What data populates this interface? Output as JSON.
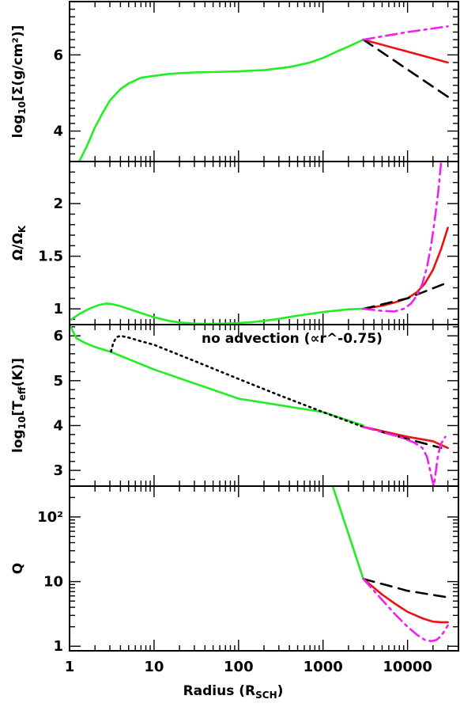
{
  "chart_data": {
    "type": "line",
    "x_scale": "log",
    "xlim": [
      1,
      40000
    ],
    "xticks": [
      1,
      10,
      100,
      1000,
      10000
    ],
    "xtick_labels": [
      "1",
      "10",
      "100",
      "1000",
      "10000"
    ],
    "xlabel": "Radius (R",
    "xlabel_sub": "SCH",
    "xlabel_close": ")",
    "colors": {
      "green": "#22ee22",
      "red": "#ee1111",
      "black": "#000000",
      "magenta": "#ee22ee"
    },
    "panels": [
      {
        "id": "sigma",
        "ylabel_main": "log",
        "ylabel_sub": "10",
        "ylabel_rest": "[Σ(g/cm²)]",
        "ylim": [
          3.2,
          7.4
        ],
        "yscale": "linear",
        "yticks": [
          4,
          6
        ],
        "ytick_labels": [
          "4",
          "6"
        ],
        "yminor": 0.2,
        "series": [
          {
            "style": "solid",
            "color": "green",
            "x": [
              1.3,
              1.6,
              2,
              2.5,
              3,
              4,
              5,
              7,
              10,
              15,
              20,
              30,
              50,
              100,
              200,
              400,
              700,
              1000,
              1500,
              2000,
              3000
            ],
            "y": [
              3.2,
              3.6,
              4.1,
              4.5,
              4.8,
              5.1,
              5.25,
              5.4,
              5.45,
              5.5,
              5.52,
              5.54,
              5.55,
              5.57,
              5.6,
              5.68,
              5.8,
              5.92,
              6.1,
              6.22,
              6.4
            ]
          },
          {
            "style": "solid",
            "color": "red",
            "x": [
              3000,
              30000
            ],
            "y": [
              6.4,
              5.8
            ]
          },
          {
            "style": "dashed",
            "color": "black",
            "x": [
              3000,
              30000
            ],
            "y": [
              6.4,
              4.9
            ]
          },
          {
            "style": "dashdot",
            "color": "magenta",
            "x": [
              3000,
              10000,
              30000
            ],
            "y": [
              6.4,
              6.6,
              6.75
            ]
          }
        ]
      },
      {
        "id": "omega",
        "ylabel_main": "Ω/Ω",
        "ylabel_sub": "K",
        "ylabel_rest": "",
        "ylim": [
          0.85,
          2.4
        ],
        "yscale": "linear",
        "yticks": [
          1,
          1.5,
          2
        ],
        "ytick_labels": [
          "1",
          "1.5",
          "2"
        ],
        "yminor": 0.1,
        "series": [
          {
            "style": "solid",
            "color": "green",
            "x": [
              1.05,
              1.3,
              1.7,
              2.2,
              2.7,
              3.2,
              4,
              5,
              7,
              10,
              15,
              20,
              30,
              45,
              70,
              100,
              150,
              200,
              300,
              500,
              1000,
              2000,
              3000
            ],
            "y": [
              0.9,
              0.95,
              1.0,
              1.035,
              1.05,
              1.045,
              1.025,
              1.0,
              0.96,
              0.92,
              0.885,
              0.87,
              0.86,
              0.857,
              0.86,
              0.865,
              0.875,
              0.885,
              0.905,
              0.935,
              0.97,
              0.995,
              1.0
            ]
          },
          {
            "style": "solid",
            "color": "red",
            "x": [
              3000,
              5000,
              7000,
              10000,
              13000,
              16000,
              20000,
              25000,
              30000
            ],
            "y": [
              1.0,
              1.03,
              1.06,
              1.1,
              1.16,
              1.24,
              1.37,
              1.57,
              1.77
            ]
          },
          {
            "style": "dashed",
            "color": "black",
            "x": [
              3000,
              10000,
              30000
            ],
            "y": [
              1.0,
              1.1,
              1.25
            ]
          },
          {
            "style": "dashdot",
            "color": "magenta",
            "x": [
              3000,
              5000,
              7000,
              9000,
              11000,
              13000,
              15000,
              17000,
              19000,
              21000,
              23000,
              25000
            ],
            "y": [
              1.0,
              0.98,
              0.975,
              1.0,
              1.05,
              1.13,
              1.24,
              1.4,
              1.6,
              1.85,
              2.1,
              2.4
            ]
          }
        ]
      },
      {
        "id": "teff",
        "ylabel_main": "log",
        "ylabel_sub": "10",
        "ylabel_rest": "[T",
        "ylabel_sub2": "eff",
        "ylabel_rest2": "(K)]",
        "ylim": [
          2.65,
          6.25
        ],
        "yscale": "linear",
        "yticks": [
          3,
          4,
          5,
          6
        ],
        "ytick_labels": [
          "3",
          "4",
          "5",
          "6"
        ],
        "yminor": 0.2,
        "annotation": "no advection (∝r^-0.75)",
        "series": [
          {
            "style": "solid",
            "color": "green",
            "x": [
              1.0,
              1.2,
              1.5,
              2,
              3,
              10,
              100,
              1000,
              3000
            ],
            "y": [
              6.25,
              5.95,
              5.85,
              5.75,
              5.65,
              5.25,
              4.6,
              4.3,
              4.0
            ]
          },
          {
            "style": "dotted",
            "color": "black",
            "x": [
              3.1,
              3.3,
              3.6,
              4,
              5,
              7,
              10,
              30,
              100,
              300,
              1000,
              3000
            ],
            "y": [
              5.65,
              5.85,
              5.97,
              6.0,
              5.96,
              5.88,
              5.8,
              5.44,
              5.04,
              4.68,
              4.3,
              3.97
            ]
          },
          {
            "style": "solid",
            "color": "red",
            "x": [
              3000,
              10000,
              20000,
              30000
            ],
            "y": [
              3.97,
              3.75,
              3.65,
              3.5
            ]
          },
          {
            "style": "dashed",
            "color": "black",
            "x": [
              3000,
              10000,
              25000
            ],
            "y": [
              3.97,
              3.7,
              3.5
            ]
          },
          {
            "style": "dashdot",
            "color": "magenta",
            "x": [
              3000,
              8000,
              12000,
              15000,
              17000,
              18500,
              19500,
              20500,
              21500,
              23000,
              25000,
              28000
            ],
            "y": [
              3.97,
              3.75,
              3.62,
              3.5,
              3.3,
              3.0,
              2.8,
              2.65,
              2.95,
              3.35,
              3.6,
              3.75
            ]
          }
        ]
      },
      {
        "id": "q",
        "ylabel_main": "Q",
        "ylabel_sub": "",
        "ylabel_rest": "",
        "ylim": [
          0.85,
          300
        ],
        "yscale": "log",
        "yticks": [
          1,
          10,
          100
        ],
        "ytick_labels": [
          "1",
          "10",
          "10²"
        ],
        "series": [
          {
            "style": "solid",
            "color": "green",
            "x": [
              1300,
              3000
            ],
            "y": [
              300,
              11
            ]
          },
          {
            "style": "dashed",
            "color": "black",
            "x": [
              3000,
              10000,
              30000
            ],
            "y": [
              11,
              7.2,
              5.7
            ]
          },
          {
            "style": "solid",
            "color": "red",
            "x": [
              3000,
              5000,
              7000,
              10000,
              15000,
              20000,
              25000,
              30000
            ],
            "y": [
              11,
              6.3,
              4.6,
              3.4,
              2.7,
              2.4,
              2.35,
              2.35
            ]
          },
          {
            "style": "dashdot",
            "color": "magenta",
            "x": [
              3000,
              5000,
              7000,
              10000,
              13000,
              16000,
              19000,
              22000,
              25000,
              28000,
              30000
            ],
            "y": [
              11,
              5.2,
              3.2,
              2.0,
              1.5,
              1.25,
              1.2,
              1.25,
              1.45,
              1.8,
              2.1
            ]
          }
        ]
      }
    ]
  }
}
